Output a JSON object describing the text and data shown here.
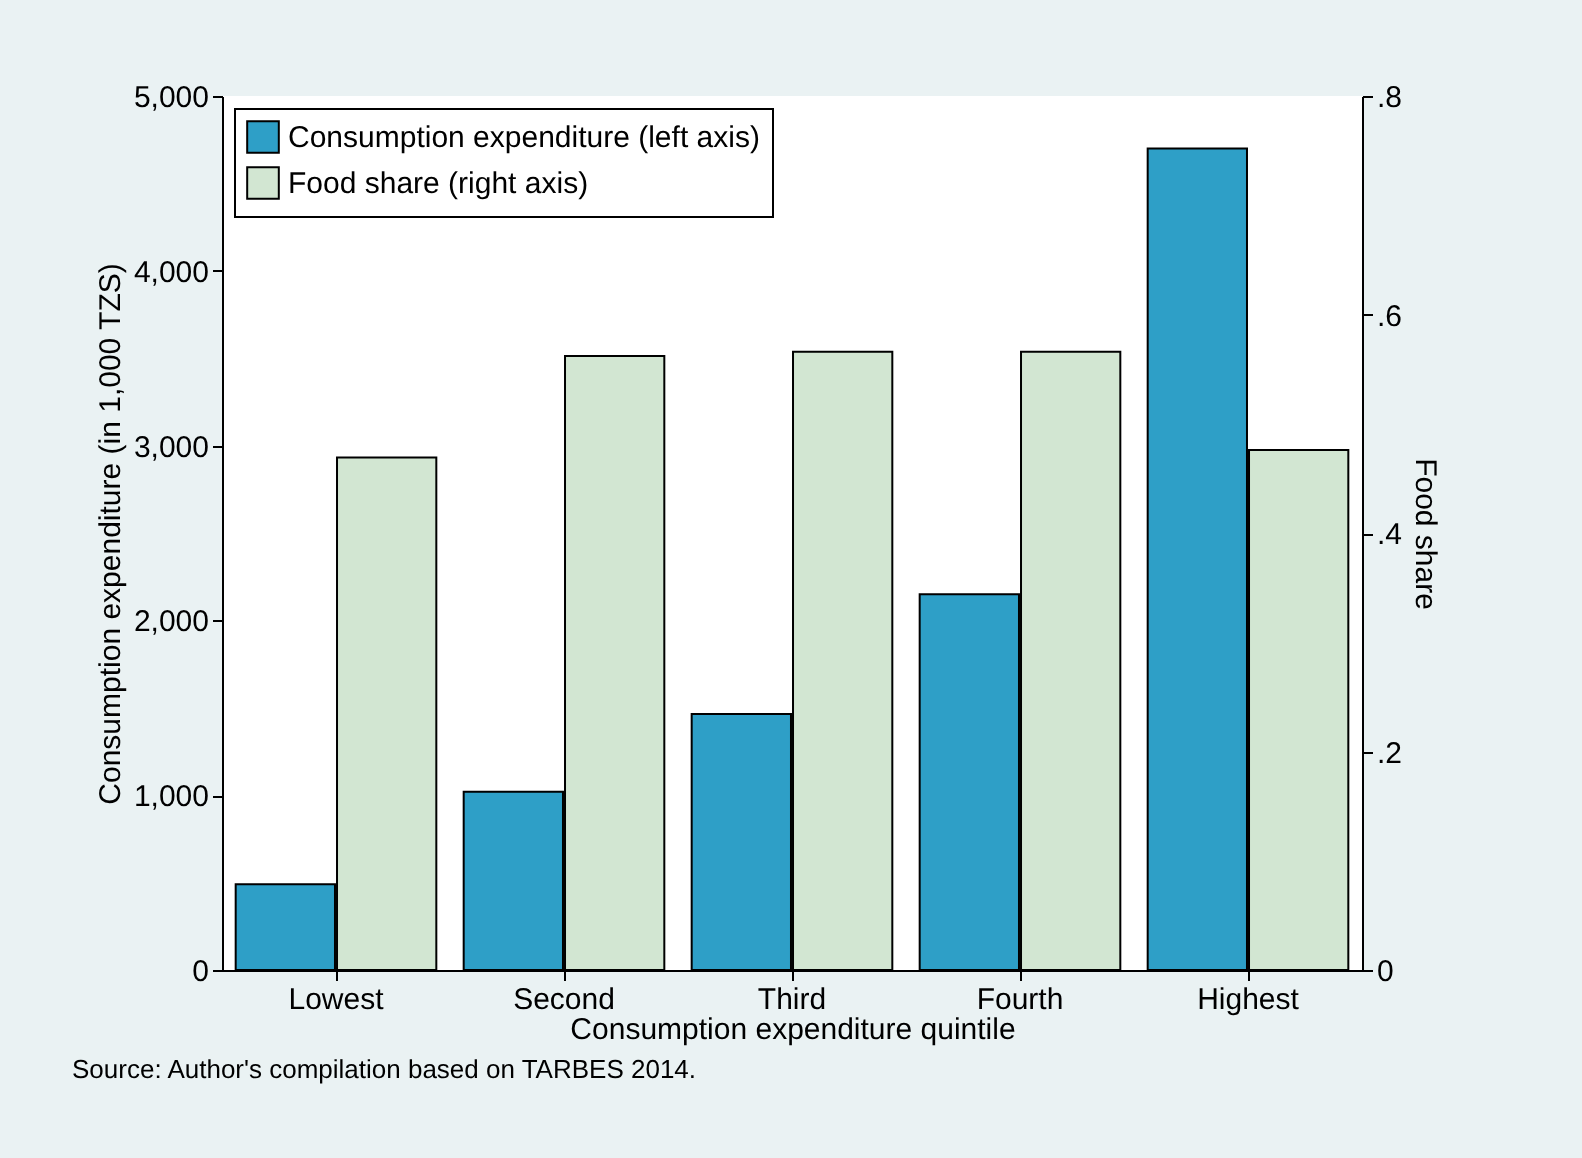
{
  "chart_data": {
    "type": "bar",
    "xlabel": "Consumption expenditure quintile",
    "ylabel": "Consumption expenditure (in 1,000 TZS)",
    "y2label": "Food share",
    "categories": [
      "Lowest",
      "Second",
      "Third",
      "Fourth",
      "Highest"
    ],
    "series": [
      {
        "name": "Consumption expenditure (left axis)",
        "color": "#2e9fc7",
        "values": [
          490,
          1020,
          1465,
          2150,
          4700
        ]
      },
      {
        "name": "Food share (right axis)",
        "color": "#d2e6d2",
        "values": [
          0.469,
          0.562,
          0.566,
          0.566,
          0.476
        ],
        "axis": "y2"
      }
    ],
    "ylim": [
      0,
      5000
    ],
    "yticks": [
      {
        "value": 0,
        "label": "0"
      },
      {
        "value": 1000,
        "label": "1,000"
      },
      {
        "value": 2000,
        "label": "2,000"
      },
      {
        "value": 3000,
        "label": "3,000"
      },
      {
        "value": 4000,
        "label": "4,000"
      },
      {
        "value": 5000,
        "label": "5,000"
      }
    ],
    "y2lim": [
      0,
      0.8
    ],
    "y2ticks": [
      {
        "value": 0,
        "label": "0"
      },
      {
        "value": 0.2,
        "label": ".2"
      },
      {
        "value": 0.4,
        "label": ".4"
      },
      {
        "value": 0.6,
        "label": ".6"
      },
      {
        "value": 0.8,
        "label": ".8"
      }
    ],
    "legend": "top left",
    "annotations": [
      "Source: Author's compilation based on TARBES 2014."
    ]
  }
}
